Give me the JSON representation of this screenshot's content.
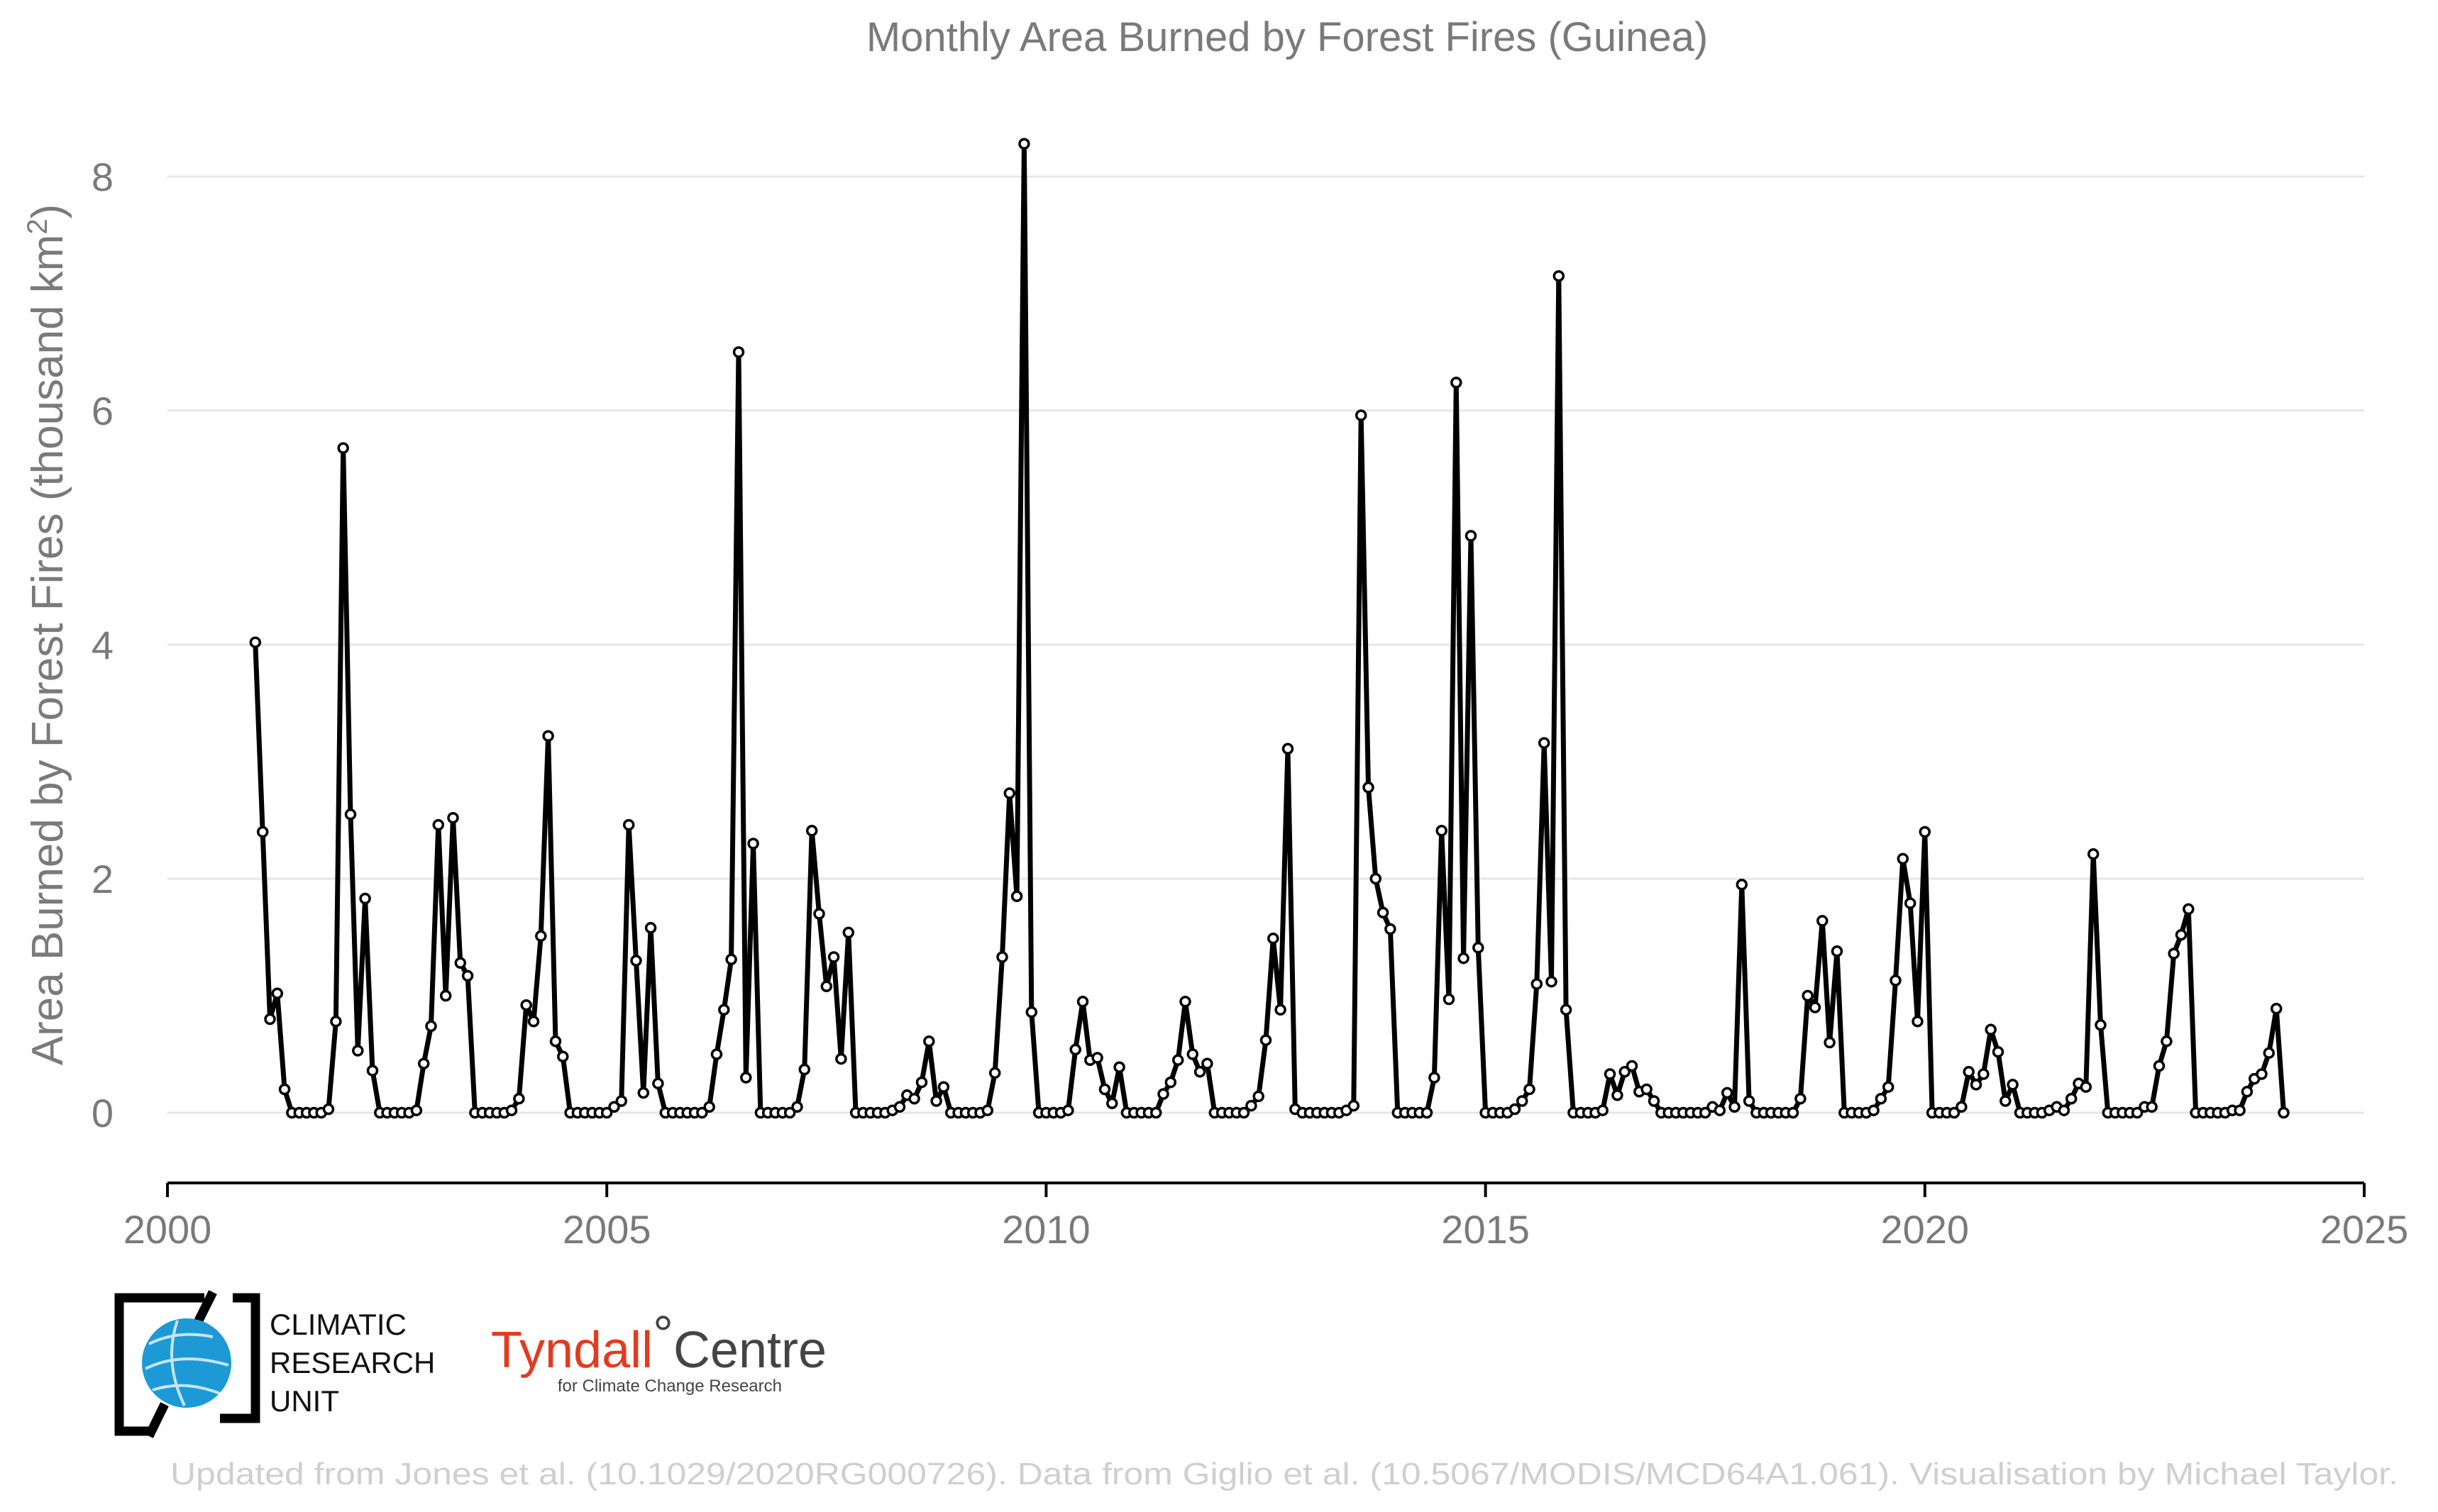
{
  "chart_data": {
    "type": "line",
    "title": "Monthly Area Burned by Forest Fires (Guinea)",
    "ylabel": "Area Burned by Forest Fires (thousand km",
    "ylabel_sup": "2",
    "ylabel_close": ")",
    "xlabel": "",
    "xlim": [
      2000,
      2025
    ],
    "ylim": [
      -0.6,
      8.6
    ],
    "x_ticks": [
      2000,
      2005,
      2010,
      2015,
      2020,
      2025
    ],
    "y_ticks": [
      0,
      2,
      4,
      6,
      8
    ],
    "grid": "horizontal",
    "line_color": "#000000",
    "marker_fill": "#ffffff",
    "start_year": 2001,
    "start_month": 1,
    "values": [
      4.02,
      2.4,
      0.8,
      1.02,
      0.2,
      0.0,
      0.0,
      0.0,
      0.0,
      0.0,
      0.03,
      0.78,
      5.68,
      2.55,
      0.53,
      1.83,
      0.36,
      0.0,
      0.0,
      0.0,
      0.0,
      0.0,
      0.02,
      0.42,
      0.74,
      2.46,
      1.0,
      2.52,
      1.28,
      1.17,
      0.0,
      0.0,
      0.0,
      0.0,
      0.0,
      0.02,
      0.12,
      0.92,
      0.78,
      1.51,
      3.22,
      0.61,
      0.48,
      0.0,
      0.0,
      0.0,
      0.0,
      0.0,
      0.0,
      0.05,
      0.1,
      2.46,
      1.3,
      0.17,
      1.58,
      0.25,
      0.0,
      0.0,
      0.0,
      0.0,
      0.0,
      0.0,
      0.05,
      0.5,
      0.88,
      1.31,
      6.5,
      0.3,
      2.3,
      0.0,
      0.0,
      0.0,
      0.0,
      0.0,
      0.05,
      0.37,
      2.41,
      1.7,
      1.08,
      1.33,
      0.46,
      1.54,
      0.0,
      0.0,
      0.0,
      0.0,
      0.0,
      0.02,
      0.05,
      0.15,
      0.12,
      0.26,
      0.61,
      0.1,
      0.22,
      0.0,
      0.0,
      0.0,
      0.0,
      0.0,
      0.02,
      0.34,
      1.33,
      2.73,
      1.85,
      8.28,
      0.86,
      0.0,
      0.0,
      0.0,
      0.0,
      0.02,
      0.54,
      0.95,
      0.45,
      0.47,
      0.2,
      0.08,
      0.39,
      0.0,
      0.0,
      0.0,
      0.0,
      0.0,
      0.16,
      0.26,
      0.45,
      0.95,
      0.5,
      0.35,
      0.42,
      0.0,
      0.0,
      0.0,
      0.0,
      0.0,
      0.06,
      0.14,
      0.62,
      1.49,
      0.88,
      3.11,
      0.03,
      0.0,
      0.0,
      0.0,
      0.0,
      0.0,
      0.0,
      0.02,
      0.06,
      5.96,
      2.78,
      2.0,
      1.71,
      1.57,
      0.0,
      0.0,
      0.0,
      0.0,
      0.0,
      0.3,
      2.41,
      0.97,
      6.24,
      1.32,
      4.93,
      1.41,
      0.0,
      0.0,
      0.0,
      0.0,
      0.03,
      0.1,
      0.2,
      1.1,
      3.16,
      1.12,
      7.15,
      0.88,
      0.0,
      0.0,
      0.0,
      0.0,
      0.02,
      0.33,
      0.15,
      0.35,
      0.4,
      0.18,
      0.2,
      0.1,
      0.0,
      0.0,
      0.0,
      0.0,
      0.0,
      0.0,
      0.0,
      0.05,
      0.02,
      0.17,
      0.05,
      1.95,
      0.1,
      0.0,
      0.0,
      0.0,
      0.0,
      0.0,
      0.0,
      0.12,
      1.0,
      0.9,
      1.64,
      0.6,
      1.38,
      0.0,
      0.0,
      0.0,
      0.0,
      0.02,
      0.12,
      0.22,
      1.13,
      2.17,
      1.79,
      0.78,
      2.4,
      0.0,
      0.0,
      0.0,
      0.0,
      0.05,
      0.35,
      0.24,
      0.33,
      0.71,
      0.52,
      0.1,
      0.24,
      0.0,
      0.0,
      0.0,
      0.0,
      0.02,
      0.05,
      0.02,
      0.12,
      0.25,
      0.22,
      2.21,
      0.75,
      0.0,
      0.0,
      0.0,
      0.0,
      0.0,
      0.05,
      0.05,
      0.4,
      0.61,
      1.36,
      1.52,
      1.74,
      0.0,
      0.0,
      0.0,
      0.0,
      0.0,
      0.02,
      0.02,
      0.18,
      0.29,
      0.33,
      0.51,
      0.89,
      0.0
    ]
  },
  "logos": {
    "cru_line1": "CLIMATIC",
    "cru_line2": "RESEARCH",
    "cru_line3": "UNIT",
    "tyndall_main": "Tyndall",
    "tyndall_degree": "°",
    "tyndall_centre": "Centre",
    "tyndall_sub": "for Climate Change Research"
  },
  "footer": "Updated from Jones et al. (10.1029/2020RG000726). Data from Giglio et al. (10.5067/MODIS/MCD64A1.061). Visualisation by Michael Taylor."
}
